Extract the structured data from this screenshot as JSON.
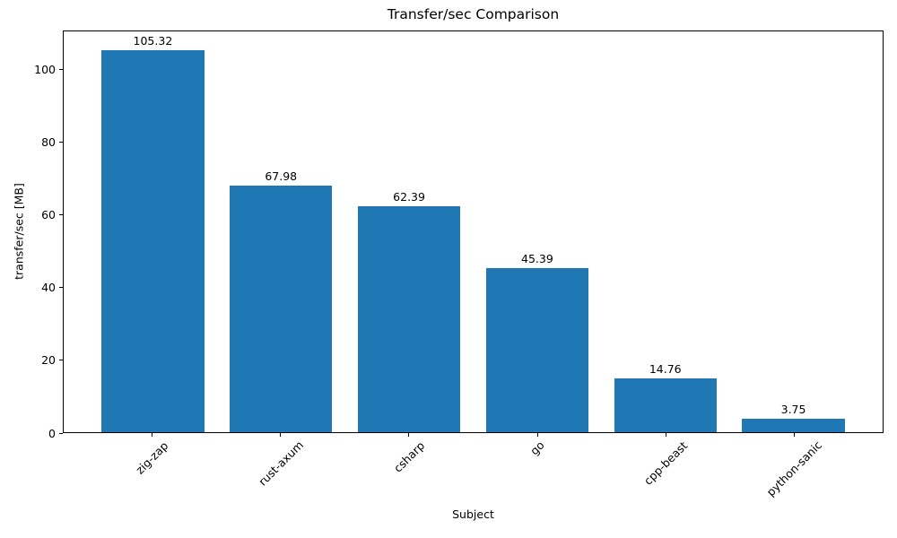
{
  "chart_data": {
    "type": "bar",
    "title": "Transfer/sec Comparison",
    "xlabel": "Subject",
    "ylabel": "transfer/sec [MB]",
    "categories": [
      "zig-zap",
      "rust-axum",
      "csharp",
      "go",
      "cpp-beast",
      "python-sanic"
    ],
    "values": [
      105.32,
      67.98,
      62.39,
      45.39,
      14.76,
      3.75
    ],
    "bar_labels": [
      "105.32",
      "67.98",
      "62.39",
      "45.39",
      "14.76",
      "3.75"
    ],
    "yticks": [
      0,
      20,
      40,
      60,
      80,
      100
    ],
    "ytick_labels": [
      "0",
      "20",
      "40",
      "60",
      "80",
      "100"
    ],
    "ylim": [
      0,
      110.6
    ],
    "bar_color": "#1f77b4",
    "axis_color": "#000000",
    "text_color": "#000000",
    "grid": false,
    "legend_position": "none"
  }
}
